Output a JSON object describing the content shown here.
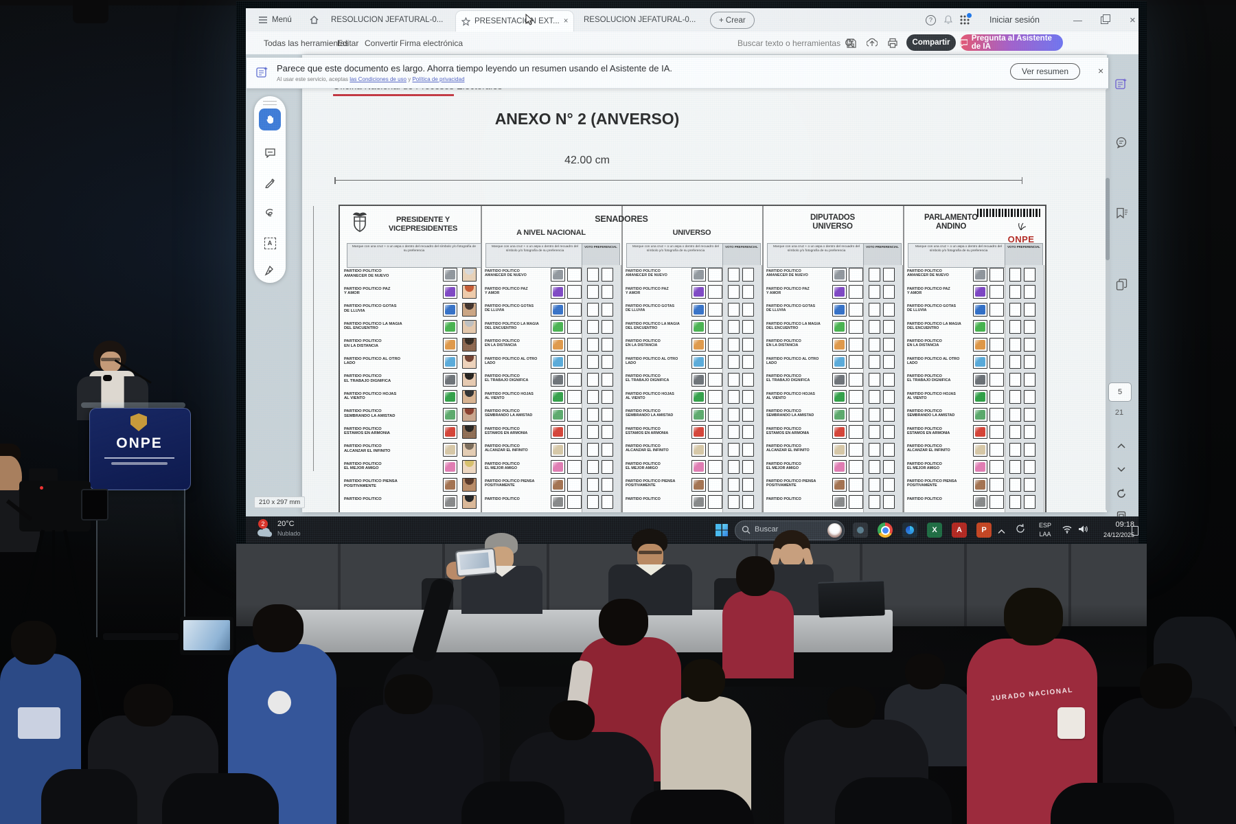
{
  "scene": {
    "podium_brand": "ONPE",
    "vest_text": "JURADO NACIONAL"
  },
  "screen": {
    "titlebar": {
      "menu_label": "Menú",
      "tabs": [
        {
          "label": "RESOLUCION JEFATURAL-0...",
          "active": false
        },
        {
          "label": "PRESENTACIÓN EXT...",
          "active": true
        },
        {
          "label": "RESOLUCION JEFATURAL-0...",
          "active": false
        }
      ],
      "create_label": "+ Crear",
      "signin_label": "Iniciar sesión"
    },
    "toolbar": {
      "item1": "Todas las herramientas",
      "item2": "Editar",
      "item3": "Convertir",
      "item4": "Firma electrónica",
      "search_placeholder": "Buscar texto o herramientas",
      "share_label": "Compartir",
      "ai_label": "Pregunta al Asistente de IA"
    },
    "ai_banner": {
      "message": "Parece que este documento es largo. Ahorra tiempo leyendo un resumen usando el Asistente de IA.",
      "legal_prefix": "Al usar este servicio, aceptas",
      "legal_link1": "las Condiciones de uso",
      "legal_conj": "y",
      "legal_link2": "Política de privacidad",
      "action_label": "Ver resumen"
    },
    "document": {
      "org_name": "Oficina Nacional de Procesos Electorales",
      "title": "ANEXO N° 2 (ANVERSO)",
      "width_label": "42.00 cm",
      "page_size_label": "210 x 297 mm",
      "ballot": {
        "senadores_header": "SENADORES",
        "groups": [
          {
            "title_line1": "PRESIDENTE Y",
            "title_line2": "VICEPRESIDENTES"
          },
          {
            "title_line1": "A NIVEL NACIONAL",
            "title_line2": ""
          },
          {
            "title_line1": "UNIVERSO",
            "title_line2": ""
          },
          {
            "title_line1": "DIPUTADOS",
            "title_line2": "UNIVERSO"
          },
          {
            "title_line1": "PARLAMENTO",
            "title_line2": "ANDINO"
          }
        ],
        "onpe_logo": "ONPE",
        "instruction": "Marque con una cruz + o un aspa x dentro del recuadro del símbolo y/o fotografía de su preferencia",
        "pref_label": "VOTO PREFERENCIAL",
        "parties": [
          {
            "name_line1": "PARTIDO POLITICO",
            "name_line2": "AMANECER DE NUEVO",
            "symbol": "saw",
            "symbol_color": "#8d9298",
            "hair": "#d8d8d8",
            "skin": "#e9d0b4"
          },
          {
            "name_line1": "PARTIDO POLITICO PAZ",
            "name_line2": "Y AMOR",
            "symbol": "umbrella",
            "symbol_color": "#7a3fc1",
            "hair": "#c4542a",
            "skin": "#f0c9a6"
          },
          {
            "name_line1": "PARTIDO POLITICO GOTAS",
            "name_line2": "DE LLUVIA",
            "symbol": "boot",
            "symbol_color": "#2e6bc4",
            "hair": "#3a2a22",
            "skin": "#caa27e"
          },
          {
            "name_line1": "PARTIDO POLITICO LA MAGIA",
            "name_line2": "DEL ENCUENTRO",
            "symbol": "t-shirt",
            "symbol_color": "#43b049",
            "hair": "#bdbdbd",
            "skin": "#e5c6a8"
          },
          {
            "name_line1": "PARTIDO POLITICO",
            "name_line2": "EN LA DISTANCIA",
            "symbol": "bread",
            "symbol_color": "#e09542",
            "hair": "#2e2319",
            "skin": "#8a6248"
          },
          {
            "name_line1": "PARTIDO POLITICO AL OTRO",
            "name_line2": "LADO",
            "symbol": "square",
            "symbol_color": "#56a8d8",
            "hair": "#6e3b2a",
            "skin": "#f0d2b8"
          },
          {
            "name_line1": "PARTIDO POLITICO",
            "name_line2": "EL TRABAJO DIGNIFICA",
            "symbol": "gavel",
            "symbol_color": "#6b6f73",
            "hair": "#1f1a16",
            "skin": "#e8c9ae"
          },
          {
            "name_line1": "PARTIDO POLITICO HOJAS",
            "name_line2": "AL VIENTO",
            "symbol": "clover",
            "symbol_color": "#2f9e44",
            "hair": "#2c2c2c",
            "skin": "#d9b28e"
          },
          {
            "name_line1": "PARTIDO POLITICO",
            "name_line2": "SEMBRANDO LA AMISTAD",
            "symbol": "socks",
            "symbol_color": "#5aa868",
            "hair": "#8a3b2a",
            "skin": "#caa58a"
          },
          {
            "name_line1": "PARTIDO POLITICO",
            "name_line2": "ESTAMOS EN ARMONIA",
            "symbol": "candy",
            "symbol_color": "#d64033",
            "hair": "#23201c",
            "skin": "#8f6b50"
          },
          {
            "name_line1": "PARTIDO POLITICO",
            "name_line2": "ALCANZAR EL INFINITO",
            "symbol": "glove",
            "symbol_color": "#d8c7a5",
            "hair": "#7a6a58",
            "skin": "#e6cdb2"
          },
          {
            "name_line1": "PARTIDO POLITICO",
            "name_line2": "EL MEJOR AMIGO",
            "symbol": "mitten",
            "symbol_color": "#e27bb1",
            "hair": "#d9c06a",
            "skin": "#f0d8c0"
          },
          {
            "name_line1": "PARTIDO POLITICO PIENSA",
            "name_line2": "POSITIVAMENTE",
            "symbol": "monkey",
            "symbol_color": "#a4714e",
            "hair": "#5a3726",
            "skin": "#b98a64"
          },
          {
            "name_line1": "PARTIDO POLITICO",
            "name_line2": "",
            "symbol": "pipe",
            "symbol_color": "#888888",
            "hair": "#222222",
            "skin": "#ddb896"
          }
        ]
      }
    },
    "pager": {
      "current_page": "5",
      "total_pages": "21"
    },
    "taskbar": {
      "badge": "2",
      "temperature": "20°C",
      "weather": "Nublado",
      "search_label": "Buscar",
      "lang_top": "ESP",
      "lang_bottom": "LAA",
      "clock_time": "09:18",
      "clock_date": "24/12/2025"
    }
  }
}
